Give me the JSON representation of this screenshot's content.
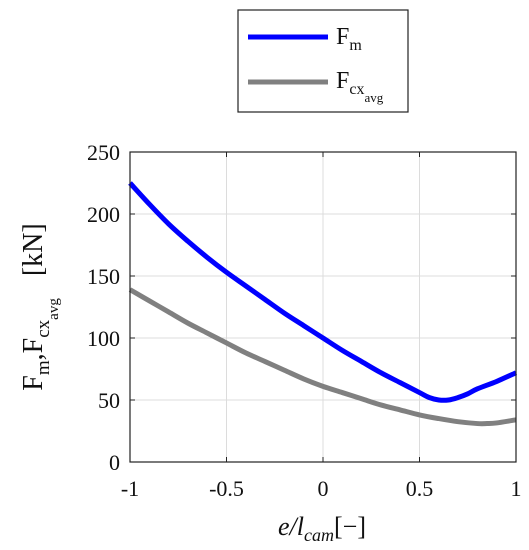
{
  "chart_data": {
    "type": "line",
    "xlabel": {
      "main": "e/l",
      "sub": "cam",
      "tail": "[−]"
    },
    "ylabel": {
      "p1": "F",
      "s1": "m",
      "p2": ",F",
      "s2": "cx",
      "s3": "avg",
      "unit": "[kN]"
    },
    "xlim": [
      -1,
      1
    ],
    "ylim": [
      0,
      250
    ],
    "xticks": [
      -1,
      -0.5,
      0,
      0.5,
      1
    ],
    "xtick_labels": [
      "-1",
      "-0.5",
      "0",
      "0.5",
      "1"
    ],
    "yticks": [
      0,
      50,
      100,
      150,
      200,
      250
    ],
    "ytick_labels": [
      "0",
      "50",
      "100",
      "150",
      "200",
      "250"
    ],
    "grid": true,
    "legend_position": "top-right, outside above plot",
    "series": [
      {
        "name": "F_m",
        "legend": {
          "main": "F",
          "sub": "m"
        },
        "color": "#0000ff",
        "x": [
          -1,
          -0.9,
          -0.8,
          -0.7,
          -0.6,
          -0.5,
          -0.4,
          -0.3,
          -0.2,
          -0.1,
          0,
          0.1,
          0.2,
          0.3,
          0.4,
          0.5,
          0.55,
          0.6,
          0.65,
          0.7,
          0.75,
          0.8,
          0.9,
          1
        ],
        "y": [
          225,
          208,
          192,
          178,
          165,
          153,
          142,
          131,
          120,
          110,
          100,
          90,
          81,
          72,
          64,
          56,
          52,
          50,
          50,
          52,
          55,
          59,
          65,
          72
        ]
      },
      {
        "name": "F_cx_avg",
        "legend": {
          "main": "F",
          "sub": "cx",
          "subsub": "avg"
        },
        "color": "#808080",
        "x": [
          -1,
          -0.9,
          -0.8,
          -0.7,
          -0.6,
          -0.5,
          -0.4,
          -0.3,
          -0.2,
          -0.1,
          0,
          0.1,
          0.2,
          0.3,
          0.4,
          0.5,
          0.6,
          0.7,
          0.8,
          0.85,
          0.9,
          1
        ],
        "y": [
          139,
          130,
          121,
          112,
          104,
          96,
          88,
          81,
          74,
          67,
          61,
          56,
          51,
          46,
          42,
          38,
          35,
          32.5,
          31,
          31,
          31.5,
          34
        ]
      }
    ]
  }
}
